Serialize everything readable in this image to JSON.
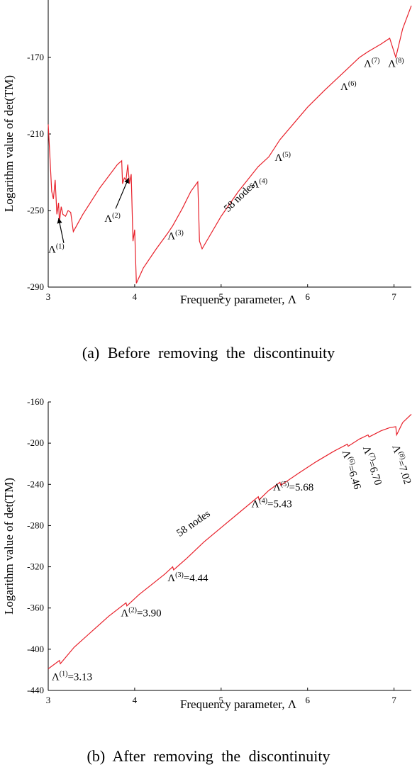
{
  "chart_data": [
    {
      "panel": "a",
      "type": "line",
      "caption": "(a)  Before  removing  the  discontinuity",
      "xlabel": "Frequency parameter, Λ",
      "ylabel": "Logarithm value of  det(TM)",
      "xlim": [
        3,
        7.2
      ],
      "ylim": [
        -290,
        -140
      ],
      "xticks": [
        "3",
        "4",
        "5",
        "6",
        "7"
      ],
      "yticks": [
        "-170",
        "-210",
        "-250",
        "-290"
      ],
      "series": [
        {
          "color": "#e8202a",
          "points": [
            [
              3.0,
              -205
            ],
            [
              3.02,
              -222
            ],
            [
              3.04,
              -240
            ],
            [
              3.06,
              -244
            ],
            [
              3.08,
              -234
            ],
            [
              3.1,
              -252
            ],
            [
              3.12,
              -246
            ],
            [
              3.13,
              -256
            ],
            [
              3.15,
              -248
            ],
            [
              3.17,
              -252
            ],
            [
              3.2,
              -253
            ],
            [
              3.23,
              -250
            ],
            [
              3.26,
              -251
            ],
            [
              3.29,
              -261
            ],
            [
              3.4,
              -252
            ],
            [
              3.6,
              -238
            ],
            [
              3.8,
              -226
            ],
            [
              3.85,
              -224
            ],
            [
              3.86,
              -236
            ],
            [
              3.88,
              -233
            ],
            [
              3.9,
              -234
            ],
            [
              3.92,
              -226
            ],
            [
              3.94,
              -236
            ],
            [
              3.96,
              -231
            ],
            [
              3.98,
              -266
            ],
            [
              4.0,
              -260
            ],
            [
              4.02,
              -288
            ],
            [
              4.1,
              -280
            ],
            [
              4.25,
              -270
            ],
            [
              4.38,
              -262
            ],
            [
              4.44,
              -258
            ],
            [
              4.55,
              -249
            ],
            [
              4.65,
              -240
            ],
            [
              4.73,
              -235
            ],
            [
              4.75,
              -266
            ],
            [
              4.78,
              -270
            ],
            [
              5.0,
              -253
            ],
            [
              5.2,
              -240
            ],
            [
              5.43,
              -227
            ],
            [
              5.55,
              -222
            ],
            [
              5.68,
              -213
            ],
            [
              6.0,
              -196
            ],
            [
              6.2,
              -187
            ],
            [
              6.46,
              -176
            ],
            [
              6.6,
              -170
            ],
            [
              6.7,
              -167
            ],
            [
              6.85,
              -163
            ],
            [
              6.95,
              -160
            ],
            [
              7.02,
              -170
            ],
            [
              7.1,
              -155
            ],
            [
              7.2,
              -143
            ]
          ]
        }
      ],
      "annotations": [
        {
          "base": "Λ",
          "sup": "(1)",
          "x": 3.0,
          "y": -272
        },
        {
          "base": "Λ",
          "sup": "(2)",
          "x": 3.65,
          "y": -256
        },
        {
          "base": "Λ",
          "sup": "(3)",
          "x": 4.38,
          "y": -265
        },
        {
          "base": "Λ",
          "sup": "(4)",
          "x": 5.35,
          "y": -238
        },
        {
          "base": "Λ",
          "sup": "(5)",
          "x": 5.62,
          "y": -224
        },
        {
          "base": "Λ",
          "sup": "(6)",
          "x": 6.38,
          "y": -187
        },
        {
          "base": "Λ",
          "sup": "(7)",
          "x": 6.65,
          "y": -175
        },
        {
          "base": "Λ",
          "sup": "(8)",
          "x": 6.93,
          "y": -175
        }
      ],
      "text_labels": [
        {
          "text": "58 nodes",
          "x": 5.08,
          "y": -251,
          "angle": -44
        }
      ]
    },
    {
      "panel": "b",
      "type": "line",
      "caption": "(b)  After  removing  the  discontinuity",
      "xlabel": "Frequency parameter, Λ",
      "ylabel": "Logarithm value of  det(TM)",
      "xlim": [
        3,
        7.2
      ],
      "ylim": [
        -440,
        -160
      ],
      "xticks": [
        "3",
        "4",
        "5",
        "6",
        "7"
      ],
      "yticks": [
        "-160",
        "-200",
        "-240",
        "-280",
        "-320",
        "-360",
        "-400",
        "-440"
      ],
      "series": [
        {
          "color": "#e8202a",
          "points": [
            [
              3.0,
              -419
            ],
            [
              3.13,
              -411
            ],
            [
              3.14,
              -414
            ],
            [
              3.3,
              -398
            ],
            [
              3.5,
              -383
            ],
            [
              3.7,
              -368
            ],
            [
              3.9,
              -355
            ],
            [
              3.91,
              -358
            ],
            [
              4.05,
              -347
            ],
            [
              4.2,
              -337
            ],
            [
              4.35,
              -327
            ],
            [
              4.44,
              -320
            ],
            [
              4.45,
              -323
            ],
            [
              4.6,
              -312
            ],
            [
              4.8,
              -296
            ],
            [
              5.0,
              -282
            ],
            [
              5.2,
              -268
            ],
            [
              5.43,
              -252
            ],
            [
              5.44,
              -255
            ],
            [
              5.55,
              -246
            ],
            [
              5.68,
              -238
            ],
            [
              5.69,
              -241
            ],
            [
              5.9,
              -229
            ],
            [
              6.1,
              -218
            ],
            [
              6.3,
              -208
            ],
            [
              6.46,
              -201
            ],
            [
              6.47,
              -203
            ],
            [
              6.6,
              -196
            ],
            [
              6.7,
              -192
            ],
            [
              6.71,
              -194
            ],
            [
              6.85,
              -188
            ],
            [
              6.95,
              -185
            ],
            [
              7.02,
              -184
            ],
            [
              7.03,
              -192
            ],
            [
              7.1,
              -180
            ],
            [
              7.2,
              -172
            ]
          ]
        }
      ],
      "annotations": [
        {
          "base": "Λ",
          "sup": "(1)",
          "rest": "=3.13",
          "x": 3.04,
          "y": -430,
          "angle": 0
        },
        {
          "base": "Λ",
          "sup": "(2)",
          "rest": "=3.90",
          "x": 3.84,
          "y": -368,
          "angle": 0
        },
        {
          "base": "Λ",
          "sup": "(3)",
          "rest": "=4.44",
          "x": 4.38,
          "y": -334,
          "angle": 0
        },
        {
          "base": "Λ",
          "sup": "(4)",
          "rest": "=5.43",
          "x": 5.35,
          "y": -262,
          "angle": 0
        },
        {
          "base": "Λ",
          "sup": "(5)",
          "rest": "=5.68",
          "x": 5.6,
          "y": -246,
          "angle": 0
        },
        {
          "base": "Λ",
          "sup": "(6)",
          "rest": "=6.46",
          "x": 6.4,
          "y": -208,
          "angle": 72
        },
        {
          "base": "Λ",
          "sup": "(7)",
          "rest": "=6.70",
          "x": 6.64,
          "y": -204,
          "angle": 72
        },
        {
          "base": "Λ",
          "sup": "(8)",
          "rest": "=7.02",
          "x": 6.98,
          "y": -203,
          "angle": 72
        }
      ],
      "text_labels": [
        {
          "text": "58 nodes",
          "x": 4.52,
          "y": -291,
          "angle": -35
        }
      ]
    }
  ]
}
